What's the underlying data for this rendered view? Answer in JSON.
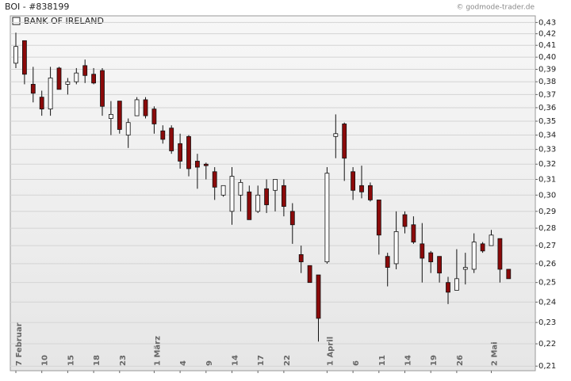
{
  "chart_data": {
    "type": "candlestick",
    "title": "BOI - #838199",
    "source": "© godmode-trader.de",
    "legend": "BANK OF IRELAND",
    "categories": [
      "7 Februar",
      null,
      null,
      "10",
      null,
      null,
      "15",
      null,
      null,
      "18",
      null,
      null,
      "23",
      null,
      null,
      null,
      "1 März",
      null,
      null,
      "4",
      null,
      null,
      "9",
      null,
      null,
      "14",
      null,
      null,
      "17",
      null,
      null,
      "22",
      null,
      null,
      null,
      null,
      "1 April",
      null,
      null,
      "6",
      null,
      null,
      "11",
      null,
      null,
      "14",
      null,
      null,
      "19",
      null,
      null,
      "26",
      null,
      null,
      null,
      "2 Mai",
      null,
      null
    ],
    "open": [
      0.395,
      0.414,
      0.378,
      0.368,
      0.359,
      0.391,
      0.378,
      0.38,
      0.393,
      0.386,
      0.389,
      0.352,
      0.365,
      0.34,
      0.354,
      0.366,
      0.359,
      0.343,
      0.345,
      0.334,
      0.339,
      0.322,
      0.32,
      0.315,
      0.3,
      0.29,
      0.3,
      0.302,
      0.29,
      0.304,
      0.303,
      0.306,
      0.29,
      0.265,
      0.259,
      0.254,
      0.261,
      0.339,
      0.348,
      0.315,
      0.306,
      0.306,
      0.297,
      0.264,
      0.26,
      0.288,
      0.282,
      0.271,
      0.266,
      0.264,
      0.25,
      0.246,
      0.257,
      0.257,
      0.271,
      0.27,
      0.274,
      0.257
    ],
    "high": [
      0.421,
      0.414,
      0.392,
      0.373,
      0.392,
      0.392,
      0.383,
      0.391,
      0.398,
      0.391,
      0.391,
      0.365,
      0.365,
      0.352,
      0.368,
      0.368,
      0.361,
      0.347,
      0.347,
      0.341,
      0.34,
      0.327,
      0.321,
      0.318,
      0.306,
      0.318,
      0.31,
      0.306,
      0.306,
      0.31,
      0.31,
      0.31,
      0.295,
      0.27,
      0.259,
      0.254,
      0.318,
      0.355,
      0.349,
      0.318,
      0.319,
      0.308,
      0.297,
      0.266,
      0.29,
      0.29,
      0.287,
      0.283,
      0.267,
      0.264,
      0.253,
      0.268,
      0.266,
      0.277,
      0.272,
      0.279,
      0.274,
      0.257
    ],
    "low": [
      0.391,
      0.378,
      0.364,
      0.354,
      0.354,
      0.374,
      0.37,
      0.378,
      0.379,
      0.378,
      0.354,
      0.34,
      0.341,
      0.331,
      0.354,
      0.352,
      0.341,
      0.334,
      0.327,
      0.317,
      0.312,
      0.304,
      0.31,
      0.297,
      0.299,
      0.282,
      0.29,
      0.285,
      0.289,
      0.289,
      0.29,
      0.287,
      0.271,
      0.255,
      0.25,
      0.221,
      0.26,
      0.324,
      0.309,
      0.297,
      0.298,
      0.296,
      0.265,
      0.248,
      0.257,
      0.277,
      0.271,
      0.25,
      0.255,
      0.25,
      0.239,
      0.246,
      0.249,
      0.255,
      0.266,
      0.27,
      0.25,
      0.252
    ],
    "close": [
      0.409,
      0.386,
      0.371,
      0.359,
      0.383,
      0.374,
      0.38,
      0.387,
      0.385,
      0.379,
      0.361,
      0.355,
      0.344,
      0.349,
      0.366,
      0.354,
      0.348,
      0.337,
      0.329,
      0.322,
      0.317,
      0.318,
      0.319,
      0.305,
      0.306,
      0.312,
      0.308,
      0.285,
      0.3,
      0.294,
      0.31,
      0.293,
      0.282,
      0.261,
      0.25,
      0.232,
      0.314,
      0.341,
      0.324,
      0.303,
      0.302,
      0.297,
      0.276,
      0.258,
      0.278,
      0.281,
      0.272,
      0.263,
      0.261,
      0.255,
      0.245,
      0.252,
      0.258,
      0.272,
      0.267,
      0.276,
      0.257,
      0.252
    ],
    "up_color": "#ffffff",
    "down_color": "#8b0a0a",
    "log_y": true,
    "grid": true,
    "ylim": [
      0.208,
      0.436
    ],
    "yticks": [
      {
        "value": 0.21,
        "label": "0,21"
      },
      {
        "value": 0.22,
        "label": "0,22"
      },
      {
        "value": 0.23,
        "label": "0,23"
      },
      {
        "value": 0.24,
        "label": "0,24"
      },
      {
        "value": 0.25,
        "label": "0,25"
      },
      {
        "value": 0.26,
        "label": "0,26"
      },
      {
        "value": 0.27,
        "label": "0,27"
      },
      {
        "value": 0.28,
        "label": "0,28"
      },
      {
        "value": 0.29,
        "label": "0,29"
      },
      {
        "value": 0.3,
        "label": "0,30"
      },
      {
        "value": 0.31,
        "label": "0,31"
      },
      {
        "value": 0.32,
        "label": "0,32"
      },
      {
        "value": 0.33,
        "label": "0,33"
      },
      {
        "value": 0.34,
        "label": "0,34"
      },
      {
        "value": 0.35,
        "label": "0,35"
      },
      {
        "value": 0.36,
        "label": "0,36"
      },
      {
        "value": 0.37,
        "label": "0,37"
      },
      {
        "value": 0.38,
        "label": "0,38"
      },
      {
        "value": 0.39,
        "label": "0,39"
      },
      {
        "value": 0.4,
        "label": "0,40"
      },
      {
        "value": 0.41,
        "label": "0,41"
      },
      {
        "value": 0.42,
        "label": "0,42"
      },
      {
        "value": 0.43,
        "label": "0,43"
      }
    ]
  }
}
